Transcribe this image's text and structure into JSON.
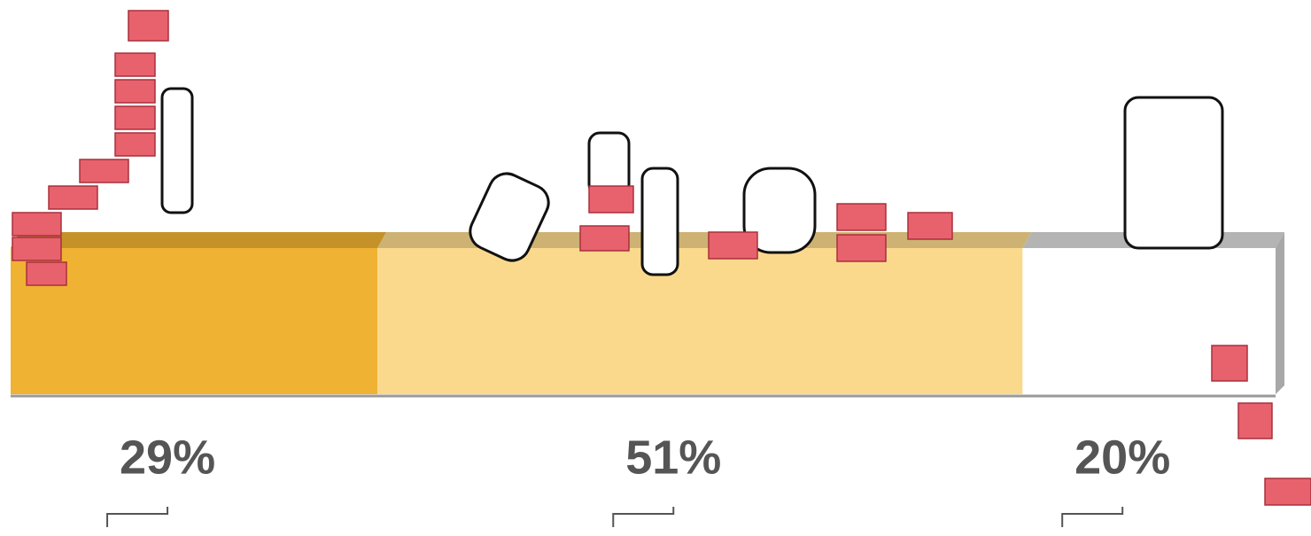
{
  "chart_data": {
    "type": "stacked_bar",
    "values": [
      29,
      51,
      20
    ],
    "value_labels": [
      "29%",
      "51%",
      "20%"
    ],
    "colors": [
      "#f0b232",
      "#fbd98c",
      "#ffffff"
    ],
    "xlim": [
      0,
      100
    ]
  }
}
